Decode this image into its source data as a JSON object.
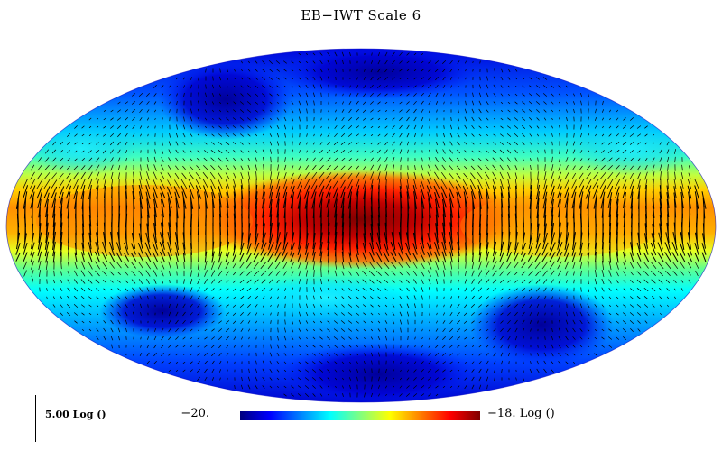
{
  "title": "EB−IWT Scale 6",
  "scale_bar": {
    "label": "5.00 Log ()"
  },
  "colorbar": {
    "min_label": "−20.",
    "max_label": "−18. Log ()",
    "colormap": [
      "#00007f",
      "#0000ff",
      "#0080ff",
      "#00ffff",
      "#80ff80",
      "#ffff00",
      "#ff8000",
      "#ff0000",
      "#7f0000"
    ]
  },
  "chart_data": {
    "type": "heatmap",
    "projection": "mollweide",
    "title": "EB−IWT Scale 6",
    "colorbar_range": [
      -20,
      -18
    ],
    "colorbar_unit": "Log ()",
    "vector_overlay": true,
    "vector_scale_bar": "5.00 Log ()"
  }
}
